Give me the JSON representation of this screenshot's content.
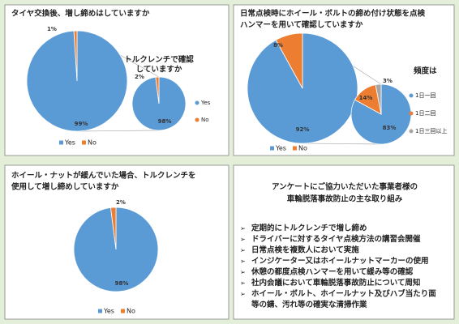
{
  "chart_data": [
    {
      "type": "pie",
      "title": [
        "タイヤ交換後、増し締めはしていますか"
      ],
      "categories": [
        "Yes",
        "No"
      ],
      "values": [
        99,
        1
      ],
      "value_labels": [
        "99%",
        "1%"
      ],
      "colors": [
        "#5b9bd5",
        "#ed7d31"
      ],
      "secondary": {
        "title": [
          "トルクレンチで確認",
          "していますか"
        ],
        "categories": [
          "Yes",
          "No"
        ],
        "values": [
          98,
          2
        ],
        "value_labels": [
          "98%",
          "2%"
        ],
        "colors": [
          "#5b9bd5",
          "#ed7d31"
        ]
      }
    },
    {
      "type": "pie",
      "title": [
        "日常点検時にホイール・ボルトの締め付け状態を点検",
        "ハンマーを用いて確認していますか"
      ],
      "categories": [
        "Yes",
        "No"
      ],
      "values": [
        92,
        8
      ],
      "value_labels": [
        "92%",
        "8%"
      ],
      "colors": [
        "#5b9bd5",
        "#ed7d31"
      ],
      "secondary": {
        "title": [
          "頻度は"
        ],
        "categories": [
          "1日一回",
          "1日二回",
          "1日三回以上"
        ],
        "values": [
          83,
          14,
          3
        ],
        "value_labels": [
          "83%",
          "14%",
          "3%"
        ],
        "colors": [
          "#5b9bd5",
          "#ed7d31",
          "#a5a5a5"
        ]
      }
    },
    {
      "type": "pie",
      "title": [
        "ホイール・ナットが緩んでいた場合、トルクレンチを",
        "使用して増し締めしていますか"
      ],
      "categories": [
        "Yes",
        "No"
      ],
      "values": [
        98,
        2
      ],
      "value_labels": [
        "98%",
        "2%"
      ],
      "colors": [
        "#5b9bd5",
        "#ed7d31"
      ]
    }
  ],
  "text_panel": {
    "title": [
      "アンケートにご協力いただいた事業者様の",
      "車輪脱落事故防止の主な取り組み"
    ],
    "items": [
      [
        "定期的にトルクレンチで増し締め"
      ],
      [
        "ドライバーに対するタイヤ点検方法の講習会開催"
      ],
      [
        "日常点検を複数人において実施"
      ],
      [
        "インジケーター又はホイールナットマーカーの使用"
      ],
      [
        "休憩の都度点検ハンマーを用いて緩み等の確認"
      ],
      [
        "社内会議において車輪脱落事故防止について周知"
      ],
      [
        "ホイール・ボルト、ホイールナット及びハブ当たり面",
        "等の錆、汚れ等の確実な清掃作業"
      ]
    ]
  }
}
